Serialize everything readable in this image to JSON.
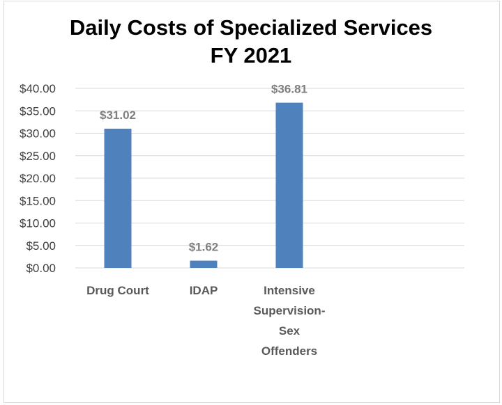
{
  "chart_data": {
    "type": "bar",
    "title_lines": [
      "Daily Costs of Specialized Services",
      "FY 2021"
    ],
    "categories": [
      "Drug Court",
      "IDAP",
      "Intensive Supervision-Sex Offenders"
    ],
    "category_label_lines": [
      [
        "Drug Court"
      ],
      [
        "IDAP"
      ],
      [
        "Intensive",
        "Supervision-",
        "Sex",
        "Offenders"
      ]
    ],
    "values": [
      31.02,
      1.62,
      36.81
    ],
    "data_labels": [
      "$31.02",
      "$1.62",
      "$36.81"
    ],
    "y_ticks": [
      0,
      5,
      10,
      15,
      20,
      25,
      30,
      35,
      40
    ],
    "y_tick_labels": [
      "$0.00",
      "$5.00",
      "$10.00",
      "$15.00",
      "$20.00",
      "$25.00",
      "$30.00",
      "$35.00",
      "$40.00"
    ],
    "ylim": [
      0,
      40
    ],
    "grid": true,
    "legend": "none",
    "bar_color": "#4f81bd",
    "gridline_color": "#d9d9d9"
  }
}
